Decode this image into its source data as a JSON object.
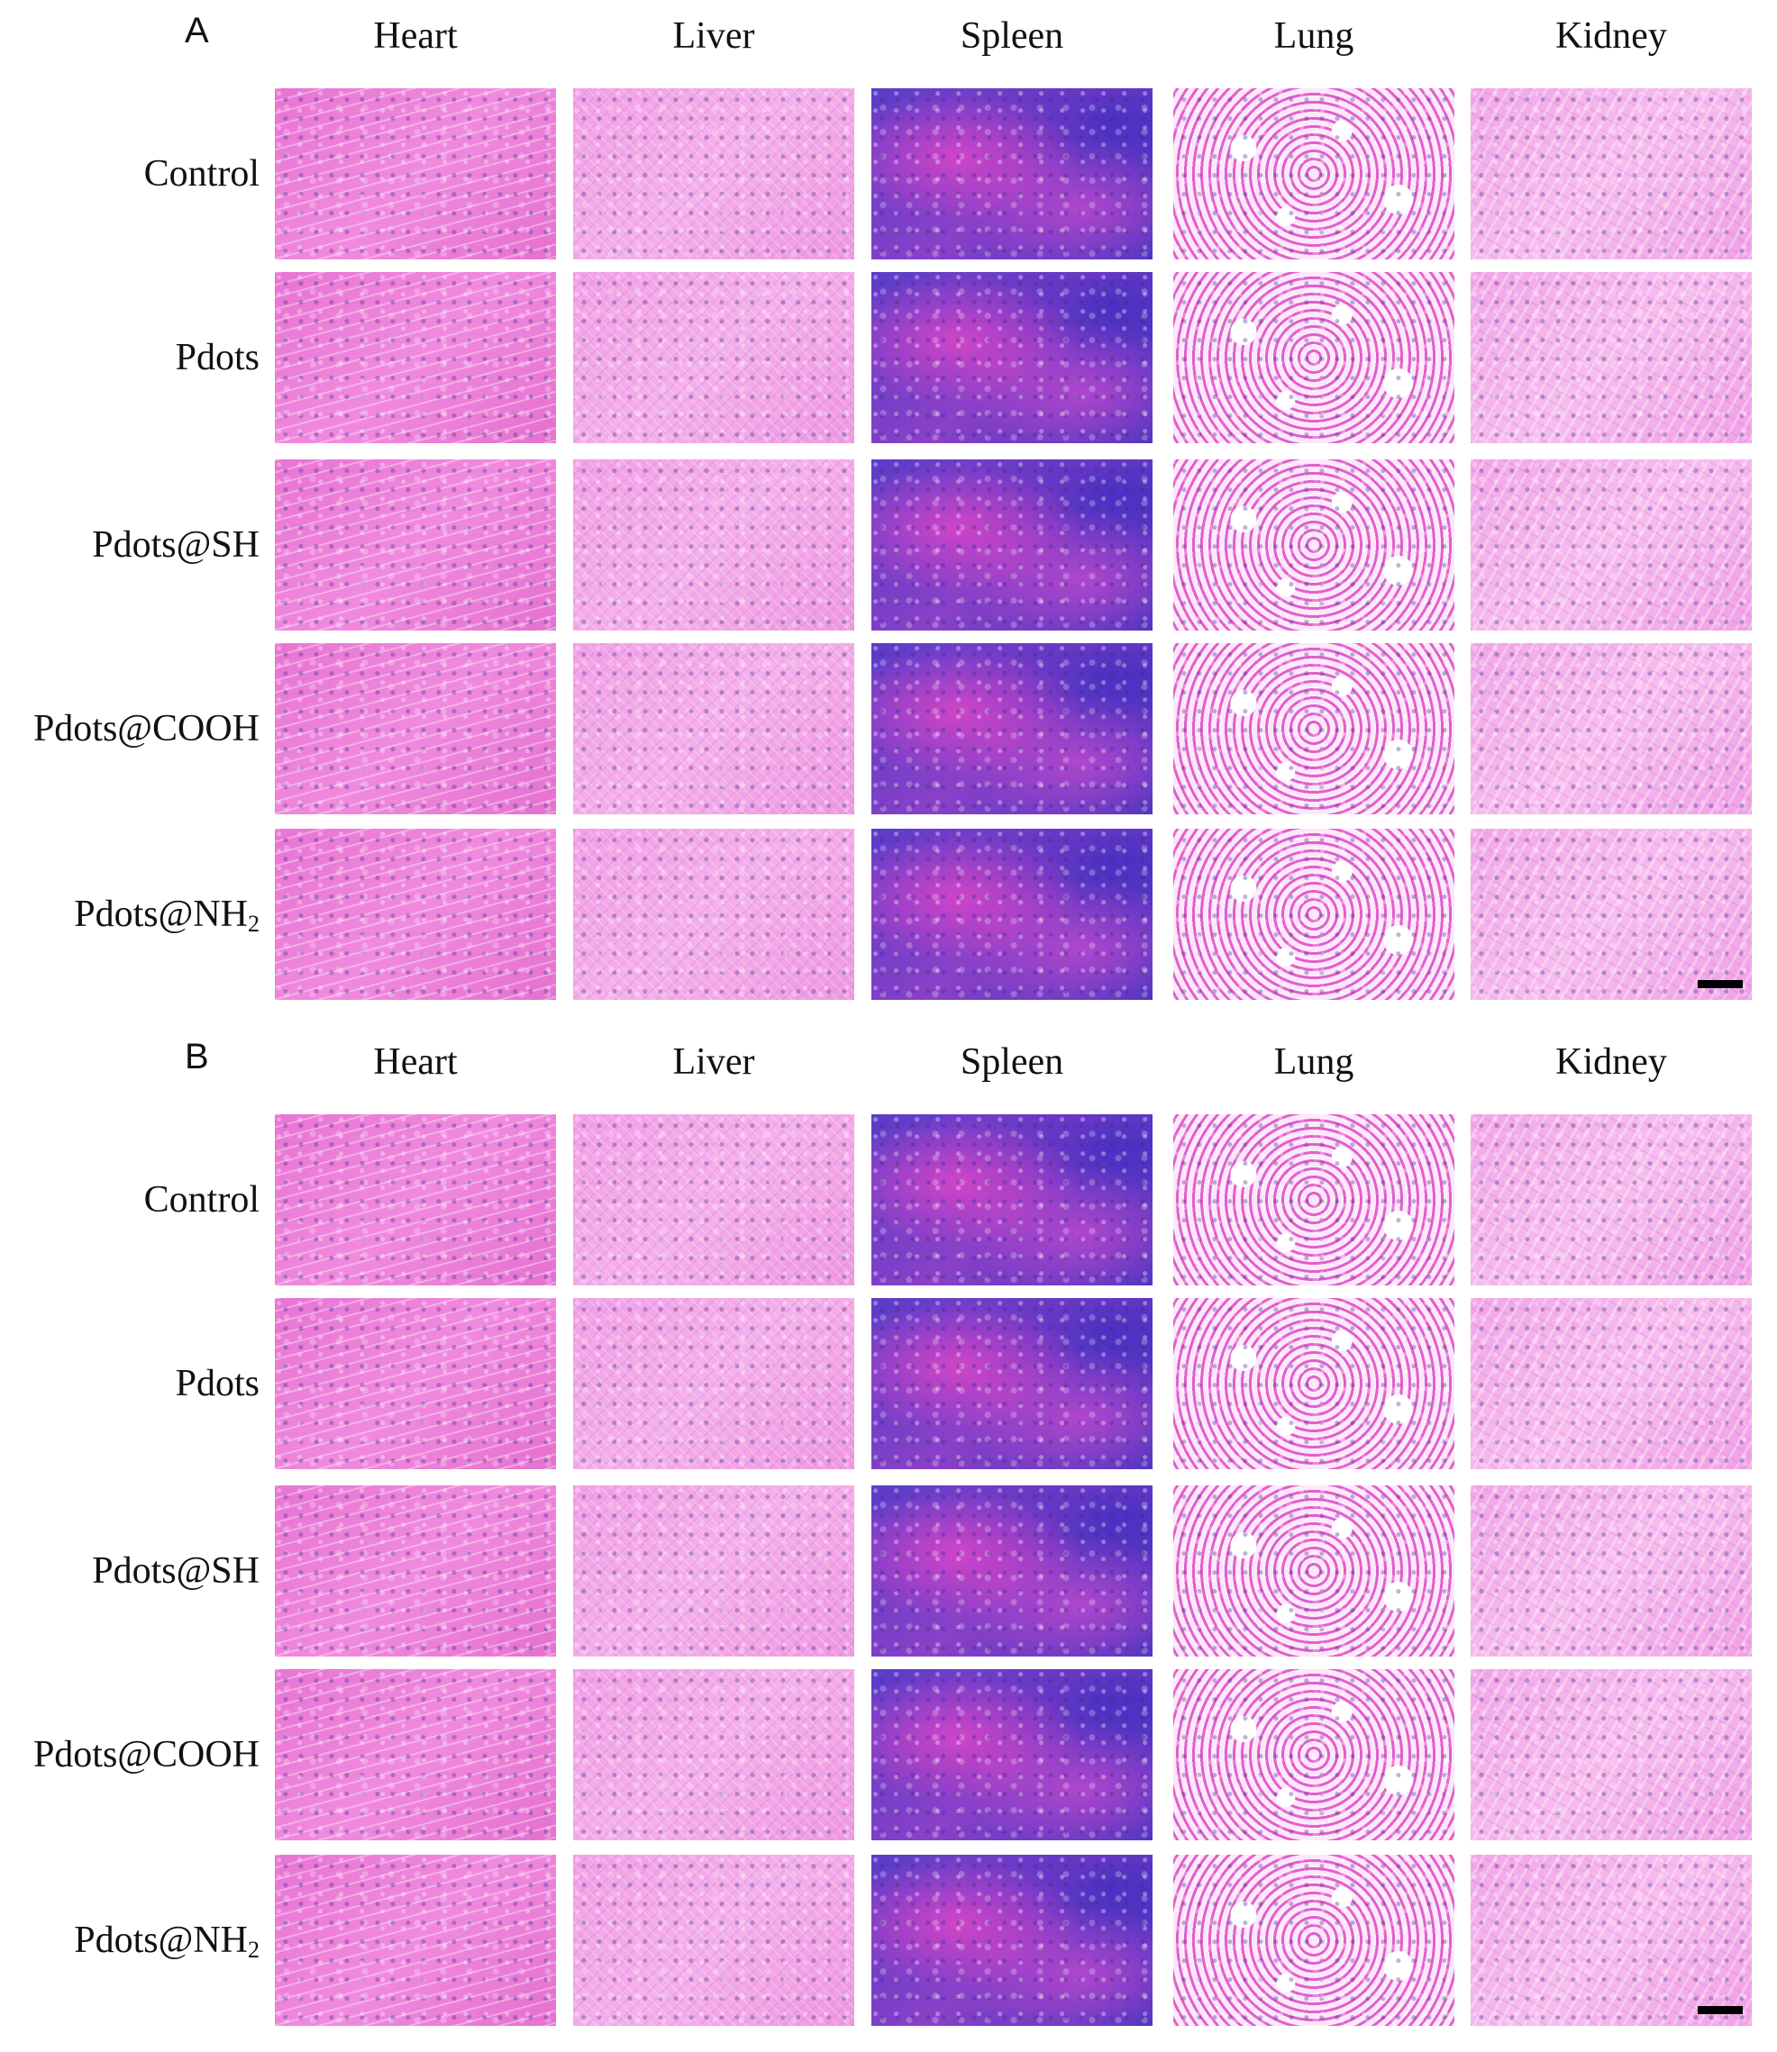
{
  "panels": [
    {
      "letter": "A",
      "columns": [
        "Heart",
        "Liver",
        "Spleen",
        "Lung",
        "Kidney"
      ],
      "rows": [
        {
          "label": "Control",
          "subscript": ""
        },
        {
          "label": "Pdots",
          "subscript": ""
        },
        {
          "label": "Pdots@SH",
          "subscript": ""
        },
        {
          "label": "Pdots@COOH",
          "subscript": ""
        },
        {
          "label": "Pdots@NH",
          "subscript": "2"
        }
      ]
    },
    {
      "letter": "B",
      "columns": [
        "Heart",
        "Liver",
        "Spleen",
        "Lung",
        "Kidney"
      ],
      "rows": [
        {
          "label": "Control",
          "subscript": ""
        },
        {
          "label": "Pdots",
          "subscript": ""
        },
        {
          "label": "Pdots@SH",
          "subscript": ""
        },
        {
          "label": "Pdots@COOH",
          "subscript": ""
        },
        {
          "label": "Pdots@NH",
          "subscript": "2"
        }
      ]
    }
  ],
  "tissue_stain_colors": {
    "heart": "#ec7fd8",
    "liver": "#f2a8e8",
    "spleen": "#6a3cc8",
    "lung": "#e060cc",
    "kidney": "#f2aee8"
  }
}
